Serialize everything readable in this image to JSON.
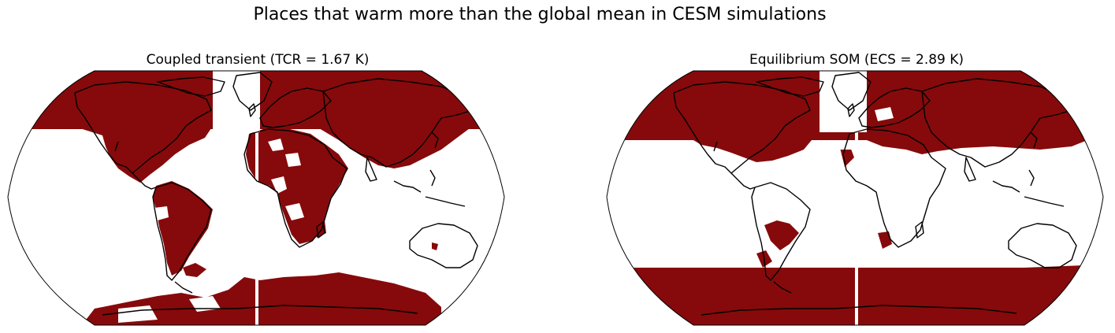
{
  "figure": {
    "title": "Places that warm more than the global mean in CESM simulations",
    "fill_color": "#860a0b",
    "coast_color": "#000000"
  },
  "panels": [
    {
      "id": "left",
      "title": "Coupled transient (TCR = 1.67 K)",
      "metric_name": "TCR",
      "metric_value": 1.67,
      "metric_unit": "K"
    },
    {
      "id": "right",
      "title": "Equilibrium SOM (ECS = 2.89 K)",
      "metric_name": "ECS",
      "metric_value": 2.89,
      "metric_unit": "K"
    }
  ]
}
